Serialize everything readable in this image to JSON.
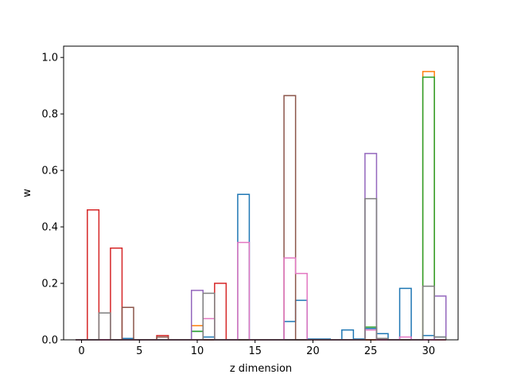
{
  "chart_data": {
    "type": "bar",
    "style": "step-outline histogram",
    "xlabel": "z dimension",
    "ylabel": "w",
    "xlim": [
      -1.55,
      32.55
    ],
    "ylim": [
      0,
      1.04
    ],
    "xticks": [
      0,
      5,
      10,
      15,
      20,
      25,
      30
    ],
    "yticks": [
      0.0,
      0.2,
      0.4,
      0.6,
      0.8,
      1.0
    ],
    "grid": false,
    "bin_width": 1,
    "bins": [
      0,
      1,
      2,
      3,
      4,
      5,
      6,
      7,
      8,
      9,
      10,
      11,
      12,
      13,
      14,
      15,
      16,
      17,
      18,
      19,
      20,
      21,
      22,
      23,
      24,
      25,
      26,
      27,
      28,
      29,
      30,
      31
    ],
    "series": [
      {
        "color": "#1f77b4",
        "values": [
          0,
          0,
          0,
          0,
          0.005,
          0,
          0,
          0,
          0,
          0,
          0.03,
          0.01,
          0,
          0,
          0.515,
          0,
          0,
          0,
          0.065,
          0.14,
          0.003,
          0.003,
          0,
          0.035,
          0.003,
          0.04,
          0.022,
          0,
          0.182,
          0,
          0.015,
          0.01
        ]
      },
      {
        "color": "#ff7f0e",
        "values": [
          0,
          0,
          0,
          0,
          0,
          0,
          0,
          0,
          0,
          0,
          0.05,
          0,
          0,
          0,
          0,
          0,
          0,
          0,
          0,
          0,
          0,
          0,
          0,
          0,
          0,
          0,
          0,
          0,
          0,
          0,
          0.95,
          0
        ]
      },
      {
        "color": "#2ca02c",
        "values": [
          0,
          0,
          0,
          0,
          0,
          0,
          0,
          0,
          0,
          0,
          0.03,
          0,
          0,
          0,
          0,
          0,
          0,
          0,
          0,
          0,
          0,
          0,
          0,
          0,
          0,
          0.045,
          0,
          0,
          0,
          0,
          0.93,
          0
        ]
      },
      {
        "color": "#d62728",
        "values": [
          0,
          0.46,
          0,
          0.325,
          0,
          0,
          0,
          0.015,
          0,
          0,
          0,
          0,
          0.2,
          0,
          0,
          0,
          0,
          0,
          0,
          0,
          0,
          0,
          0,
          0,
          0,
          0,
          0,
          0,
          0,
          0,
          0,
          0
        ]
      },
      {
        "color": "#9467bd",
        "values": [
          0,
          0,
          0,
          0,
          0,
          0,
          0,
          0,
          0,
          0,
          0.175,
          0,
          0,
          0,
          0,
          0,
          0,
          0,
          0,
          0,
          0,
          0,
          0,
          0,
          0,
          0.66,
          0,
          0,
          0,
          0,
          0,
          0.155
        ]
      },
      {
        "color": "#8c564b",
        "values": [
          0,
          0,
          0,
          0,
          0.115,
          0,
          0,
          0.01,
          0,
          0,
          0,
          0,
          0,
          0,
          0,
          0,
          0,
          0,
          0.865,
          0,
          0,
          0,
          0,
          0,
          0,
          0,
          0,
          0,
          0,
          0,
          0,
          0
        ]
      },
      {
        "color": "#e377c2",
        "values": [
          0,
          0,
          0,
          0,
          0,
          0,
          0,
          0,
          0,
          0,
          0,
          0.075,
          0,
          0,
          0.345,
          0,
          0,
          0,
          0.29,
          0.235,
          0,
          0,
          0,
          0,
          0,
          0.035,
          0,
          0,
          0.01,
          0,
          0,
          0
        ]
      },
      {
        "color": "#7f7f7f",
        "values": [
          0,
          0,
          0.095,
          0,
          0,
          0,
          0,
          0,
          0,
          0,
          0,
          0.165,
          0,
          0,
          0,
          0,
          0,
          0,
          0,
          0,
          0,
          0,
          0,
          0,
          0,
          0.5,
          0.005,
          0,
          0,
          0,
          0.19,
          0.01
        ]
      }
    ]
  }
}
